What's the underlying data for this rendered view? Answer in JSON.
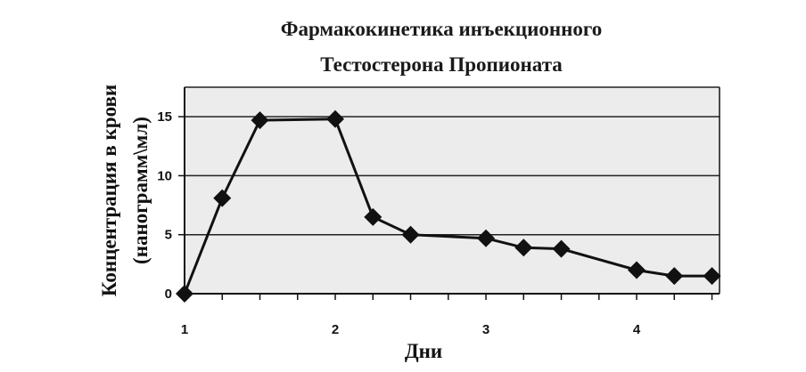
{
  "chart_data": {
    "type": "line",
    "title_lines": [
      "Фармакокинетика инъекционного",
      "Тестостерона Пропионата"
    ],
    "xlabel": "Дни",
    "ylabel_lines": [
      "Концентрация в крови",
      "(нанограмм\\мл)"
    ],
    "x_ticks": [
      "1",
      "2",
      "3",
      "4"
    ],
    "y_ticks": [
      "0",
      "5",
      "10",
      "15"
    ],
    "xlim": [
      1,
      4.55
    ],
    "ylim": [
      0,
      17.5
    ],
    "grid": {
      "horizontal": true,
      "vertical": false
    },
    "legend": "none",
    "series": [
      {
        "x": [
          1,
          1.25,
          1.5,
          2,
          2.25,
          2.5,
          3,
          3.25,
          3.5,
          4,
          4.25,
          4.5
        ],
        "y": [
          0,
          8.1,
          14.7,
          14.8,
          6.5,
          5.0,
          4.7,
          3.9,
          3.8,
          2.0,
          1.5,
          1.5
        ]
      }
    ],
    "colors": {
      "line": "#111111",
      "marker": "#111111",
      "grid": "#222222",
      "plot_bg": "#ececec"
    }
  }
}
